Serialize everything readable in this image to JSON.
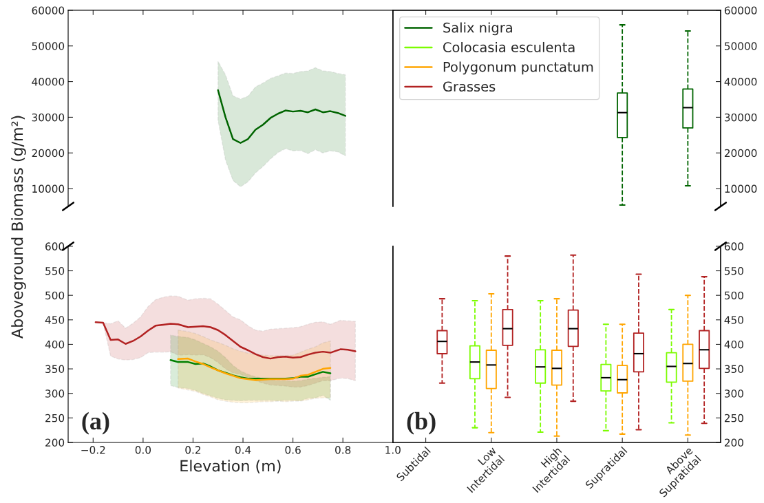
{
  "chart_data": [
    {
      "type": "line",
      "xlim": [
        -0.3,
        1.0
      ],
      "ylim": [
        5000,
        60000
      ],
      "tick_labels": "y",
      "xticks": [
        {
          "value": -0.2,
          "label": null
        },
        {
          "value": 0.0,
          "label": null
        },
        {
          "value": 0.2,
          "label": null
        },
        {
          "value": 0.4,
          "label": null
        },
        {
          "value": 0.6,
          "label": null
        },
        {
          "value": 0.8,
          "label": null
        },
        {
          "value": 1.0,
          "label": null
        }
      ],
      "yticks": [
        10000,
        20000,
        30000,
        40000,
        50000,
        60000
      ],
      "series": [
        {
          "color": "#006400",
          "x": [
            0.3,
            0.33,
            0.36,
            0.39,
            0.42,
            0.45,
            0.48,
            0.51,
            0.54,
            0.57,
            0.6,
            0.63,
            0.66,
            0.69,
            0.72,
            0.75,
            0.78,
            0.81
          ],
          "values": [
            37600,
            30000,
            23900,
            22800,
            23900,
            26500,
            27900,
            29800,
            31000,
            31900,
            31600,
            31800,
            31400,
            32200,
            31400,
            31700,
            31200,
            30400
          ],
          "upper": [
            45700,
            41900,
            36000,
            35100,
            35900,
            38500,
            39600,
            40900,
            41600,
            42400,
            42300,
            42800,
            43000,
            43900,
            43000,
            42800,
            42300,
            41900
          ],
          "lower": [
            29100,
            18000,
            12300,
            10500,
            11900,
            14400,
            16200,
            18300,
            20100,
            21200,
            20600,
            20700,
            19800,
            20900,
            20000,
            20600,
            20300,
            19200
          ]
        }
      ]
    },
    {
      "type": "line",
      "xlim": [
        -0.3,
        1.0
      ],
      "ylim": [
        200,
        600
      ],
      "xlabel": "Elevation (m)",
      "ylabel": "Aboveground Biomass (g/m²)",
      "annotations": [
        "(a)"
      ],
      "xticks": [
        {
          "value": -0.2,
          "label": "−0.2"
        },
        {
          "value": 0.0,
          "label": "0.0"
        },
        {
          "value": 0.2,
          "label": "0.2"
        },
        {
          "value": 0.4,
          "label": "0.4"
        },
        {
          "value": 0.6,
          "label": "0.6"
        },
        {
          "value": 0.8,
          "label": "0.8"
        },
        {
          "value": 1.0,
          "label": "1.0"
        }
      ],
      "yticks": [
        200,
        250,
        300,
        350,
        400,
        450,
        500,
        550,
        600
      ],
      "series": [
        {
          "color": "#b22222",
          "x": [
            -0.19,
            -0.16,
            -0.13,
            -0.1,
            -0.07,
            -0.04,
            -0.01,
            0.02,
            0.05,
            0.08,
            0.11,
            0.14,
            0.18,
            0.21,
            0.24,
            0.27,
            0.3,
            0.33,
            0.36,
            0.39,
            0.42,
            0.45,
            0.48,
            0.51,
            0.54,
            0.57,
            0.6,
            0.63,
            0.66,
            0.69,
            0.72,
            0.75,
            0.79,
            0.82,
            0.85
          ],
          "values": [
            445,
            444,
            409,
            410,
            401,
            407,
            416,
            428,
            438,
            440,
            442,
            441,
            435,
            436,
            437,
            435,
            429,
            419,
            407,
            395,
            388,
            380,
            374,
            371,
            374,
            375,
            373,
            374,
            379,
            383,
            385,
            383,
            390,
            389,
            386
          ],
          "upper": [
            null,
            444,
            442,
            448,
            433,
            443,
            456,
            477,
            491,
            496,
            499,
            498,
            490,
            493,
            494,
            493,
            482,
            469,
            456,
            450,
            438,
            429,
            427,
            431,
            432,
            433,
            434,
            436,
            441,
            445,
            446,
            441,
            449,
            448,
            447
          ],
          "lower": [
            null,
            443,
            376,
            370,
            368,
            369,
            373,
            383,
            384,
            384,
            385,
            378,
            379,
            378,
            379,
            373,
            363,
            350,
            342,
            339,
            333,
            326,
            321,
            317,
            316,
            315,
            313,
            313,
            316,
            321,
            326,
            326,
            331,
            330,
            326
          ]
        },
        {
          "color": "#008000",
          "x": [
            0.11,
            0.14,
            0.18,
            0.21,
            0.24,
            0.27,
            0.3,
            0.33,
            0.36,
            0.39,
            0.42,
            0.45,
            0.48,
            0.51,
            0.54,
            0.57,
            0.6,
            0.63,
            0.66,
            0.69,
            0.72,
            0.75
          ],
          "values": [
            368,
            364,
            364,
            360,
            361,
            355,
            347,
            342,
            337,
            333,
            330,
            330,
            330,
            330,
            330,
            330,
            331,
            334,
            334,
            339,
            344,
            341
          ],
          "upper": [
            419,
            416,
            414,
            409,
            402,
            395,
            386,
            373,
            357,
            346,
            339,
            334,
            331,
            328,
            326,
            326,
            325,
            326,
            329,
            331,
            333,
            334
          ],
          "lower": [
            316,
            312,
            310,
            306,
            300,
            295,
            290,
            287,
            286,
            285,
            286,
            286,
            286,
            286,
            285,
            286,
            286,
            285,
            290,
            291,
            296,
            286
          ]
        },
        {
          "color": "#ffa500",
          "x": [
            0.14,
            0.18,
            0.21,
            0.24,
            0.27,
            0.3,
            0.33,
            0.36,
            0.39,
            0.42,
            0.45,
            0.48,
            0.51,
            0.54,
            0.57,
            0.6,
            0.63,
            0.66,
            0.69,
            0.72,
            0.75
          ],
          "values": [
            370,
            371,
            365,
            360,
            353,
            347,
            341,
            336,
            331,
            329,
            327,
            328,
            329,
            329,
            329,
            330,
            336,
            338,
            344,
            350,
            352
          ],
          "upper": [
            429,
            426,
            422,
            416,
            409,
            404,
            398,
            391,
            386,
            382,
            380,
            378,
            377,
            377,
            377,
            378,
            384,
            390,
            395,
            403,
            407
          ],
          "lower": [
            311,
            307,
            304,
            298,
            293,
            287,
            284,
            282,
            281,
            281,
            282,
            283,
            283,
            284,
            283,
            284,
            284,
            287,
            290,
            291,
            291
          ]
        }
      ]
    },
    {
      "type": "box",
      "categories": [
        null,
        null,
        null,
        null,
        null
      ],
      "y2lim": [
        5000,
        60000
      ],
      "y2ticks": [
        10000,
        20000,
        30000,
        40000,
        50000,
        60000
      ],
      "tick_labels": "y",
      "legend": "top left",
      "series": [
        {
          "name": "Salix nigra",
          "color": "#006400",
          "axis": "y2",
          "boxes": [
            null,
            null,
            null,
            {
              "low": 5400,
              "q1": 24300,
              "median": 31300,
              "q3": 36800,
              "high": 55900
            },
            {
              "low": 10800,
              "q1": 27000,
              "median": 32700,
              "q3": 37900,
              "high": 54200
            }
          ]
        }
      ]
    },
    {
      "type": "box",
      "categories": [
        "Subtidal",
        "Low\nIntertidal",
        "High\nIntertidal",
        "Supratidal",
        "Above\nSupratidal"
      ],
      "y2lim": [
        200,
        600
      ],
      "y2ticks": [
        200,
        250,
        300,
        350,
        400,
        450,
        500,
        550,
        600
      ],
      "annotations": [
        "(b)"
      ],
      "legend": "top left",
      "series": [
        {
          "name": "Colocasia esculenta",
          "color": "#7cfc00",
          "axis": "y2",
          "boxes": [
            null,
            {
              "low": 230,
              "q1": 330,
              "median": 364,
              "q3": 397,
              "high": 489
            },
            {
              "low": 221,
              "q1": 321,
              "median": 354,
              "q3": 389,
              "high": 489
            },
            {
              "low": 224,
              "q1": 305,
              "median": 332,
              "q3": 359,
              "high": 441
            },
            {
              "low": 240,
              "q1": 323,
              "median": 355,
              "q3": 383,
              "high": 471
            }
          ]
        },
        {
          "name": "Polygonum punctatum",
          "color": "#ffa500",
          "axis": "y2",
          "boxes": [
            null,
            {
              "low": 220,
              "q1": 310,
              "median": 358,
              "q3": 388,
              "high": 503
            },
            {
              "low": 213,
              "q1": 317,
              "median": 351,
              "q3": 388,
              "high": 493
            },
            {
              "low": 217,
              "q1": 301,
              "median": 328,
              "q3": 357,
              "high": 441
            },
            {
              "low": 215,
              "q1": 325,
              "median": 361,
              "q3": 400,
              "high": 500
            }
          ]
        },
        {
          "name": "Grasses",
          "color": "#b22222",
          "axis": "y2",
          "boxes": [
            {
              "low": 321,
              "q1": 381,
              "median": 406,
              "q3": 428,
              "high": 493
            },
            {
              "low": 292,
              "q1": 398,
              "median": 432,
              "q3": 471,
              "high": 580
            },
            {
              "low": 284,
              "q1": 396,
              "median": 432,
              "q3": 470,
              "high": 582
            },
            {
              "low": 226,
              "q1": 344,
              "median": 381,
              "q3": 423,
              "high": 543
            },
            {
              "low": 239,
              "q1": 351,
              "median": 389,
              "q3": 428,
              "high": 538
            }
          ]
        }
      ]
    }
  ]
}
